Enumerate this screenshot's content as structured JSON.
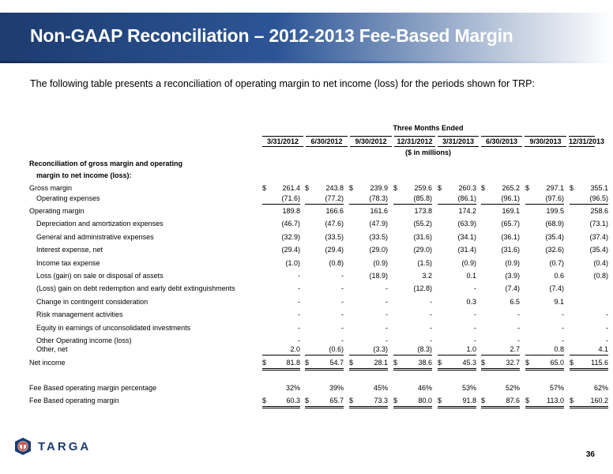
{
  "slide": {
    "title": "Non-GAAP Reconciliation – 2012-2013 Fee-Based Margin",
    "subtitle": "The following table presents a reconciliation of operating margin to net income (loss) for the periods shown for TRP:",
    "page_number": "36",
    "logo_text": "TARGA",
    "accent_color": "#1d3c6f"
  },
  "table": {
    "group_header": "Three Months Ended",
    "units": "($ in millions)",
    "columns": [
      "3/31/2012",
      "6/30/2012",
      "9/30/2012",
      "12/31/2012",
      "3/31/2013",
      "6/30/2013",
      "9/30/2013",
      "12/31/2013"
    ],
    "section_label_1": "Reconciliation of gross margin and operating",
    "section_label_2": "margin to net income (loss):",
    "rows": [
      {
        "label": "Gross margin",
        "indent": false,
        "dollar": true,
        "values": [
          "261.4",
          "243.8",
          "239.9",
          "259.6",
          "260.3",
          "265.2",
          "297.1",
          "355.1"
        ]
      },
      {
        "label": "Operating expenses",
        "indent": true,
        "underline": true,
        "values": [
          "(71.6)",
          "(77.2)",
          "(78.3)",
          "(85.8)",
          "(86.1)",
          "(96.1)",
          "(97.6)",
          "(96.5)"
        ]
      },
      {
        "label": "Operating margin",
        "indent": false,
        "values": [
          "189.8",
          "166.6",
          "161.6",
          "173.8",
          "174.2",
          "169.1",
          "199.5",
          "258.6"
        ]
      },
      {
        "label": "Depreciation and amortization expenses",
        "indent": true,
        "values": [
          "(46.7)",
          "(47.6)",
          "(47.9)",
          "(55.2)",
          "(63.9)",
          "(65.7)",
          "(68.9)",
          "(73.1)"
        ]
      },
      {
        "label": "General and administrative expenses",
        "indent": true,
        "values": [
          "(32.9)",
          "(33.5)",
          "(33.5)",
          "(31.6)",
          "(34.1)",
          "(36.1)",
          "(35.4)",
          "(37.4)"
        ]
      },
      {
        "label": "Interest expense, net",
        "indent": true,
        "values": [
          "(29.4)",
          "(29.4)",
          "(29.0)",
          "(29.0)",
          "(31.4)",
          "(31.6)",
          "(32.6)",
          "(35.4)"
        ]
      },
      {
        "label": "Income tax expense",
        "indent": true,
        "values": [
          "(1.0)",
          "(0.8)",
          "(0.9)",
          "(1.5)",
          "(0.9)",
          "(0.9)",
          "(0.7)",
          "(0.4)"
        ]
      },
      {
        "label": "Loss (gain) on sale or disposal of assets",
        "indent": true,
        "values": [
          "-",
          "-",
          "(18.9)",
          "3.2",
          "0.1",
          "(3.9)",
          "0.6",
          "(0.8)"
        ]
      },
      {
        "label": "(Loss) gain on debt redemption and early debt extinguishments",
        "indent": true,
        "values": [
          "-",
          "-",
          "-",
          "(12.8)",
          "-",
          "(7.4)",
          "(7.4)",
          ""
        ]
      },
      {
        "label": "Change in contingent consideration",
        "indent": true,
        "values": [
          "-",
          "-",
          "-",
          "-",
          "0.3",
          "6.5",
          "9.1",
          ""
        ]
      },
      {
        "label": "Risk management activities",
        "indent": true,
        "values": [
          "-",
          "-",
          "-",
          "-",
          "-",
          "-",
          "-",
          "-"
        ]
      },
      {
        "label": "Equity in earnings of unconsolidated investments",
        "indent": true,
        "values": [
          "-",
          "-",
          "-",
          "-",
          "-",
          "-",
          "-",
          "-"
        ]
      },
      {
        "label": "Other Operating income (loss)",
        "indent": true,
        "compact": true,
        "values": [
          "-",
          "-",
          "-",
          "-",
          "-",
          "-",
          "-",
          "-"
        ]
      },
      {
        "label": "Other, net",
        "indent": true,
        "underline": true,
        "values": [
          "2.0",
          "(0.6)",
          "(3.3)",
          "(8.3)",
          "1.0",
          "2.7",
          "0.8",
          "4.1"
        ]
      },
      {
        "label": "Net income",
        "indent": false,
        "dollar": true,
        "double": true,
        "values": [
          "81.8",
          "54.7",
          "28.1",
          "38.6",
          "45.3",
          "32.7",
          "65.0",
          "115.6"
        ]
      },
      {
        "label": "",
        "spacer": true,
        "values": []
      },
      {
        "label": "Fee Based operating margin percentage",
        "indent": false,
        "values": [
          "32%",
          "39%",
          "45%",
          "46%",
          "53%",
          "52%",
          "57%",
          "62%"
        ]
      },
      {
        "label": "Fee Based operating margin",
        "indent": false,
        "dollar": true,
        "double": true,
        "compact": true,
        "values": [
          "60.3",
          "65.7",
          "73.3",
          "80.0",
          "91.8",
          "87.6",
          "113.0",
          "160.2"
        ]
      }
    ],
    "currency_symbol": "$"
  }
}
